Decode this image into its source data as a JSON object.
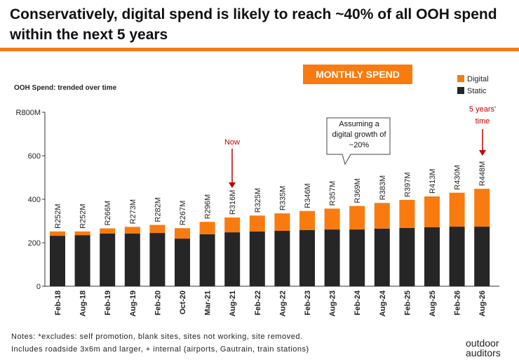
{
  "chart_data": {
    "type": "stacked_bar",
    "title": "Conservatively, digital spend is likely to reach ~40% of all OOH spend within the next 5 years",
    "badge": "MONTHLY SPEND",
    "subtitle": "OOH Spend: trended over time",
    "categories": [
      "Feb-18",
      "Aug-18",
      "Feb-19",
      "Aug-19",
      "Feb-20",
      "Oct-20",
      "Mar-21",
      "Aug-21",
      "Feb-22",
      "Aug-22",
      "Feb-23",
      "Aug-23",
      "Feb-24",
      "Aug-24",
      "Feb-25",
      "Aug-25",
      "Feb-26",
      "Aug-26"
    ],
    "series": [
      {
        "name": "Static",
        "color": "#262626",
        "values": [
          232,
          235,
          242,
          242,
          245,
          219,
          239,
          248,
          252,
          255,
          258,
          261,
          261,
          265,
          268,
          271,
          274,
          274
        ]
      },
      {
        "name": "Digital",
        "color": "#f97b0f",
        "values": [
          20,
          17,
          24,
          31,
          37,
          48,
          57,
          68,
          73,
          80,
          88,
          96,
          108,
          118,
          129,
          142,
          156,
          174
        ]
      }
    ],
    "totals": {
      "values": [
        252,
        252,
        266,
        273,
        282,
        267,
        296,
        316,
        325,
        335,
        346,
        357,
        369,
        383,
        397,
        413,
        430,
        448
      ],
      "value_labels": [
        "R252M",
        "R252M",
        "R266M",
        "R273M",
        "R282M",
        "R267M",
        "R296M",
        "R316M",
        "R325M",
        "R335M",
        "R346M",
        "R357M",
        "R369M",
        "R383M",
        "R397M",
        "R413M",
        "R430M",
        "R448M"
      ]
    },
    "ylim": [
      0,
      800
    ],
    "yticks": [
      0,
      200,
      400,
      600,
      {
        "value": 800,
        "label": "R800M"
      }
    ],
    "annotations": [
      "Now",
      "5 years' time",
      "Assuming a digital growth of ~20%"
    ],
    "notes": [
      "Notes: *excludes: self promotion, blank sites, sites not working, site removed.",
      "Includes roadside 3x6m and larger, + internal (airports, Gautrain, train stations)"
    ],
    "logo": "outdoor auditors"
  }
}
